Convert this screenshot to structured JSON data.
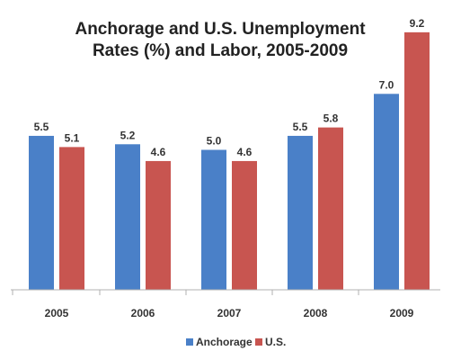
{
  "chart_data": {
    "type": "bar",
    "title": "Anchorage and U.S. Unemployment Rates (%) and Labor, 2005-2009",
    "title_lines": [
      "Anchorage and U.S. Unemployment",
      "Rates (%) and Labor, 2005-2009"
    ],
    "categories": [
      "2005",
      "2006",
      "2007",
      "2008",
      "2009"
    ],
    "series": [
      {
        "name": "Anchorage",
        "color": "#4a80c8",
        "values": [
          5.5,
          5.2,
          5.0,
          5.5,
          7.0
        ]
      },
      {
        "name": "U.S.",
        "color": "#c85550",
        "values": [
          5.1,
          4.6,
          4.6,
          5.8,
          9.2
        ]
      }
    ],
    "ylim": [
      0,
      10
    ],
    "grid": false,
    "legend_position": "bottom",
    "xlabel": "",
    "ylabel": ""
  }
}
